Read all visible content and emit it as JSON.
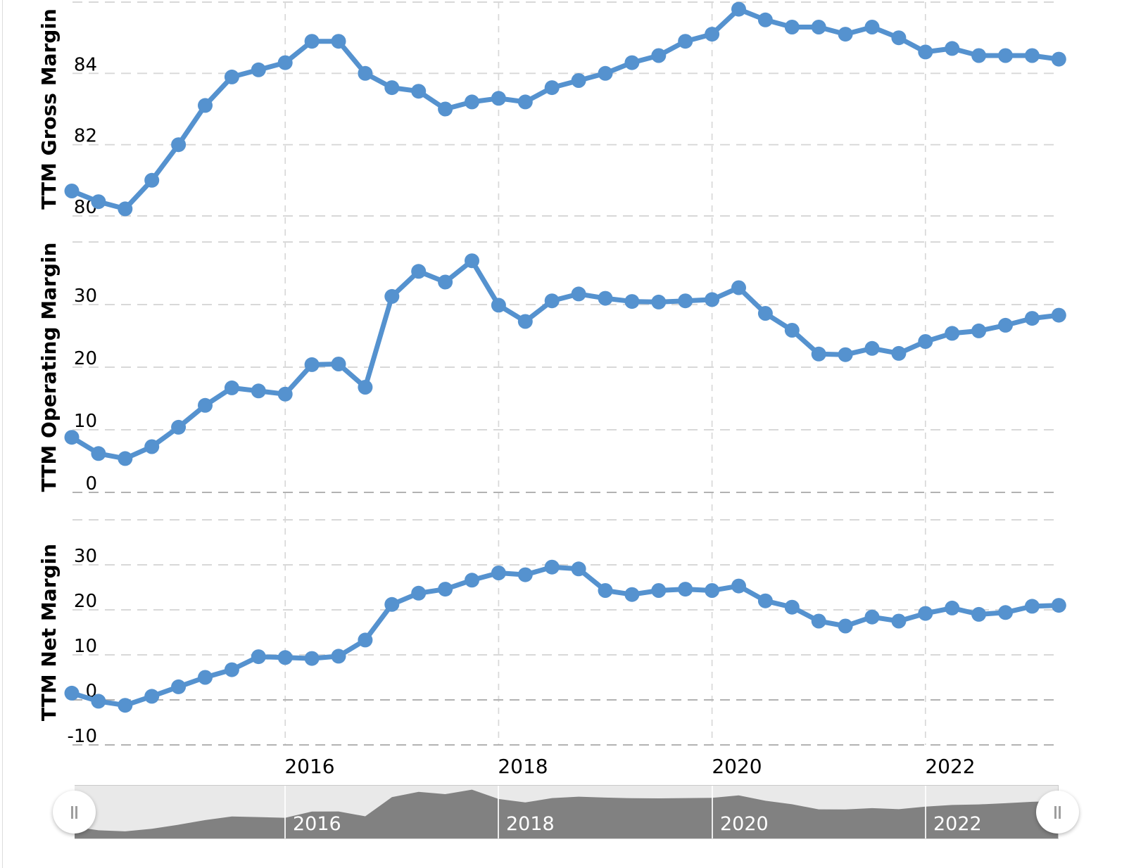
{
  "colors": {
    "series_line": "#5592cf",
    "grid_light": "#d8d8d8",
    "grid_dark": "#b2b2b2",
    "axis_text": "#000000",
    "nav_area": "#818181",
    "nav_track": "#e9e9e9",
    "nav_label_text": "#ffffff"
  },
  "x_axis": {
    "labels": [
      "2016",
      "2018",
      "2020",
      "2022"
    ]
  },
  "navigator": {
    "labels": [
      "2016",
      "2018",
      "2020",
      "2022"
    ],
    "handle_icon": "drag-grip-icon",
    "area_source": "TTM Operating Margin",
    "value_range": [
      0,
      40
    ]
  },
  "chart_data": [
    {
      "type": "line",
      "title": "TTM Gross Margin",
      "ylabel": "TTM Gross Margin",
      "y_ticks": [
        "84",
        "82",
        "80"
      ],
      "y_grid_values": [
        86,
        84,
        82,
        80
      ],
      "ylim": [
        79.9,
        86.1
      ],
      "x_tick_labels": [
        "2016",
        "2018",
        "2020",
        "2022"
      ],
      "x_tick_indices": [
        8,
        16,
        24,
        32
      ],
      "point_count": 38,
      "grid": true,
      "legend": "none",
      "values": [
        80.7,
        80.4,
        80.2,
        81.0,
        82.0,
        83.1,
        83.9,
        84.1,
        84.3,
        84.9,
        84.9,
        84.0,
        83.6,
        83.5,
        83.0,
        83.2,
        83.3,
        83.2,
        83.6,
        83.8,
        84.0,
        84.3,
        84.5,
        84.9,
        85.1,
        85.8,
        85.5,
        85.3,
        85.3,
        85.1,
        85.3,
        85.0,
        84.6,
        84.7,
        84.5,
        84.5,
        84.5,
        84.4
      ]
    },
    {
      "type": "line",
      "title": "TTM Operating Margin",
      "ylabel": "TTM Operating Margin",
      "y_ticks": [
        "30",
        "20",
        "10",
        "0"
      ],
      "y_grid_values": [
        40,
        30,
        20,
        10,
        0
      ],
      "ylim": [
        0,
        40
      ],
      "x_tick_labels": [
        "2016",
        "2018",
        "2020",
        "2022"
      ],
      "x_tick_indices": [
        8,
        16,
        24,
        32
      ],
      "point_count": 38,
      "grid": true,
      "legend": "none",
      "values": [
        8.8,
        6.2,
        5.4,
        7.3,
        10.4,
        13.9,
        16.7,
        16.2,
        15.7,
        20.4,
        20.5,
        16.8,
        31.3,
        35.3,
        33.6,
        37.0,
        29.9,
        27.3,
        30.6,
        31.7,
        31.0,
        30.5,
        30.4,
        30.6,
        30.8,
        32.7,
        28.6,
        25.9,
        22.1,
        22.0,
        23.0,
        22.2,
        24.1,
        25.4,
        25.8,
        26.7,
        27.8,
        28.3
      ]
    },
    {
      "type": "line",
      "title": "TTM Net Margin",
      "ylabel": "TTM Net Margin",
      "y_ticks": [
        "30",
        "20",
        "10",
        "0",
        "-10"
      ],
      "y_grid_values": [
        40,
        30,
        20,
        10,
        0,
        -10
      ],
      "ylim": [
        -10,
        40
      ],
      "x_tick_labels": [
        "2016",
        "2018",
        "2020",
        "2022"
      ],
      "x_tick_indices": [
        8,
        16,
        24,
        32
      ],
      "point_count": 38,
      "grid": true,
      "legend": "none",
      "values": [
        1.5,
        -0.3,
        -1.2,
        0.8,
        2.9,
        5.0,
        6.7,
        9.6,
        9.4,
        9.2,
        9.7,
        13.3,
        21.2,
        23.7,
        24.6,
        26.6,
        28.2,
        27.8,
        29.5,
        29.1,
        24.3,
        23.4,
        24.3,
        24.6,
        24.3,
        25.3,
        22.0,
        20.6,
        17.5,
        16.4,
        18.4,
        17.5,
        19.2,
        20.4,
        19.0,
        19.4,
        20.8,
        21.0
      ]
    }
  ]
}
